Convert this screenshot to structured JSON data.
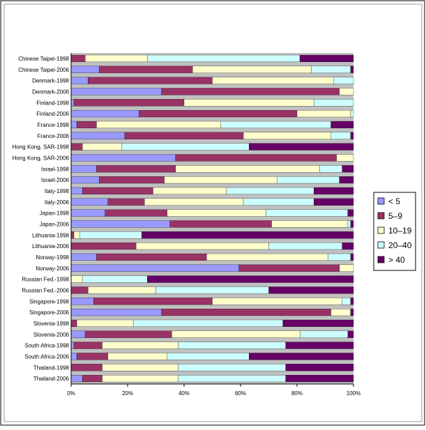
{
  "chart_data": {
    "type": "bar",
    "orientation": "horizontal",
    "stacked": "percent",
    "categories": [
      "Chinese Taipei-1998",
      "Chinese Taipei-2006",
      "Denmark-1998",
      "Denmark-2006",
      "Finland-1998",
      "Finland-2006",
      "France-1998",
      "France-2006",
      "Hong Kong, SAR-1998",
      "Hong Kong, SAR-2006",
      "Israel-1998",
      "Israel-2006",
      "Italy-1998",
      "Italy-2006",
      "Japan-1998",
      "Japan-2006",
      "Lithuania-1998",
      "Lithuania-2006",
      "Norway-1998",
      "Norway-2006",
      "Russian Fed.-1998",
      "Russian Fed.-2006",
      "Singapore-1998",
      "Singapore-2006",
      "Slovenia-1998",
      "Slovenia-2006",
      "South Africa-1998",
      "South Africa-2006",
      "Thailand-1998",
      "Thailand-2006"
    ],
    "series": [
      {
        "name": "< 5",
        "color": "#9999ff",
        "values": [
          0,
          10,
          6,
          32,
          1,
          24,
          2,
          19,
          0,
          37,
          9,
          10,
          4,
          13,
          12,
          35,
          0,
          0,
          9,
          60,
          0,
          0,
          8,
          32,
          0,
          5,
          1,
          2,
          0,
          4
        ]
      },
      {
        "name": "5–9",
        "color": "#993366",
        "values": [
          5,
          33,
          44,
          63,
          39,
          56,
          7,
          42,
          4,
          57,
          28,
          23,
          25,
          13,
          22,
          36,
          1,
          23,
          39,
          36,
          0,
          6,
          42,
          60,
          2,
          31,
          10,
          11,
          11,
          7
        ]
      },
      {
        "name": "10–19",
        "color": "#ffffcc",
        "values": [
          22,
          42,
          43,
          5,
          46,
          19,
          44,
          31,
          14,
          6,
          51,
          40,
          26,
          35,
          35,
          27,
          2,
          47,
          43,
          5,
          4,
          24,
          46,
          7,
          20,
          46,
          27,
          21,
          27,
          27
        ]
      },
      {
        "name": "20–40",
        "color": "#ccffff",
        "values": [
          54,
          14,
          7,
          0,
          14,
          1,
          39,
          7,
          45,
          0,
          8,
          22,
          31,
          25,
          29,
          1,
          22,
          26,
          8,
          0,
          23,
          40,
          3,
          0,
          53,
          17,
          38,
          29,
          38,
          38
        ]
      },
      {
        "name": "> 40",
        "color": "#660066",
        "values": [
          19,
          1,
          0,
          0,
          0,
          0,
          8,
          1,
          37,
          0,
          4,
          5,
          14,
          14,
          2,
          1,
          75,
          4,
          1,
          0,
          73,
          30,
          1,
          1,
          25,
          2,
          24,
          37,
          24,
          24
        ]
      }
    ],
    "x_ticks": [
      "0%",
      "20%",
      "40%",
      "60%",
      "80%",
      "100%"
    ],
    "xlim": [
      0,
      100
    ],
    "grid": false,
    "legend_position": "right",
    "title": "",
    "xlabel": "",
    "ylabel": ""
  }
}
